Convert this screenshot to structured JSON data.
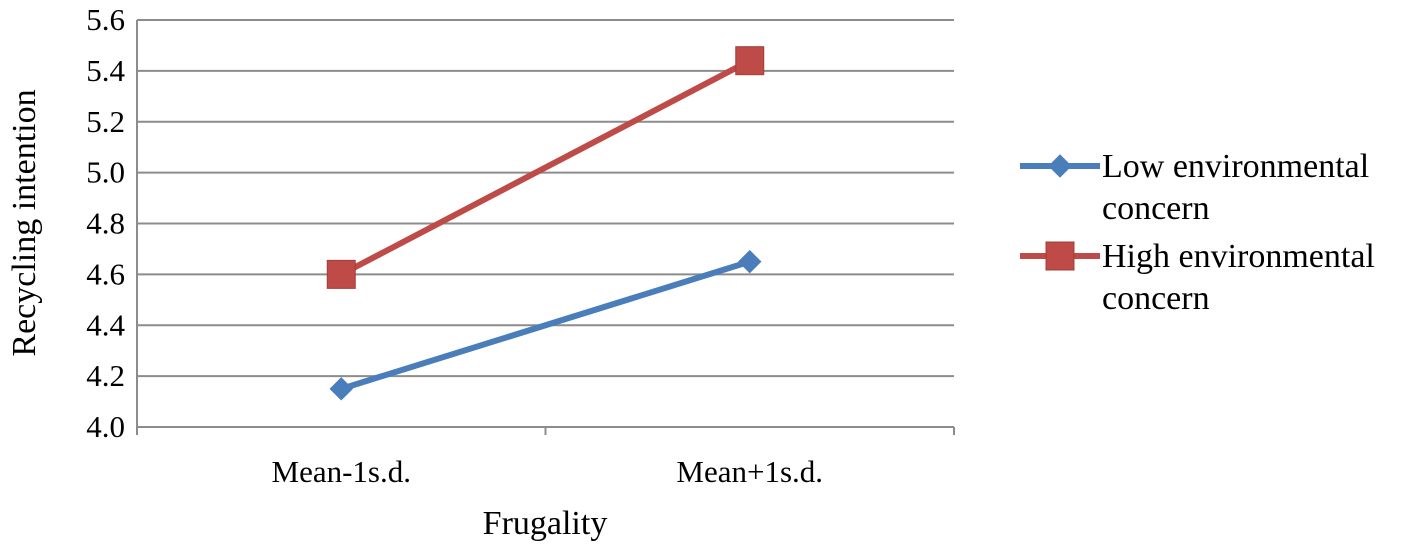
{
  "chart_data": {
    "type": "line",
    "title": "",
    "xlabel": "Frugality",
    "ylabel": "Recycling intention",
    "categories": [
      "Mean-1s.d.",
      "Mean+1s.d."
    ],
    "ylim": [
      4.0,
      5.6
    ],
    "yticks": [
      "4.0",
      "4.2",
      "4.4",
      "4.6",
      "4.8",
      "5.0",
      "5.2",
      "5.4",
      "5.6"
    ],
    "grid": true,
    "legend_position": "right",
    "series": [
      {
        "name": "Low environmental concern",
        "values": [
          4.15,
          4.65
        ],
        "color": "#4a7ebb",
        "marker": "diamond"
      },
      {
        "name": "High environmental concern",
        "values": [
          4.6,
          5.44
        ],
        "color": "#be4b48",
        "marker": "square"
      }
    ]
  }
}
